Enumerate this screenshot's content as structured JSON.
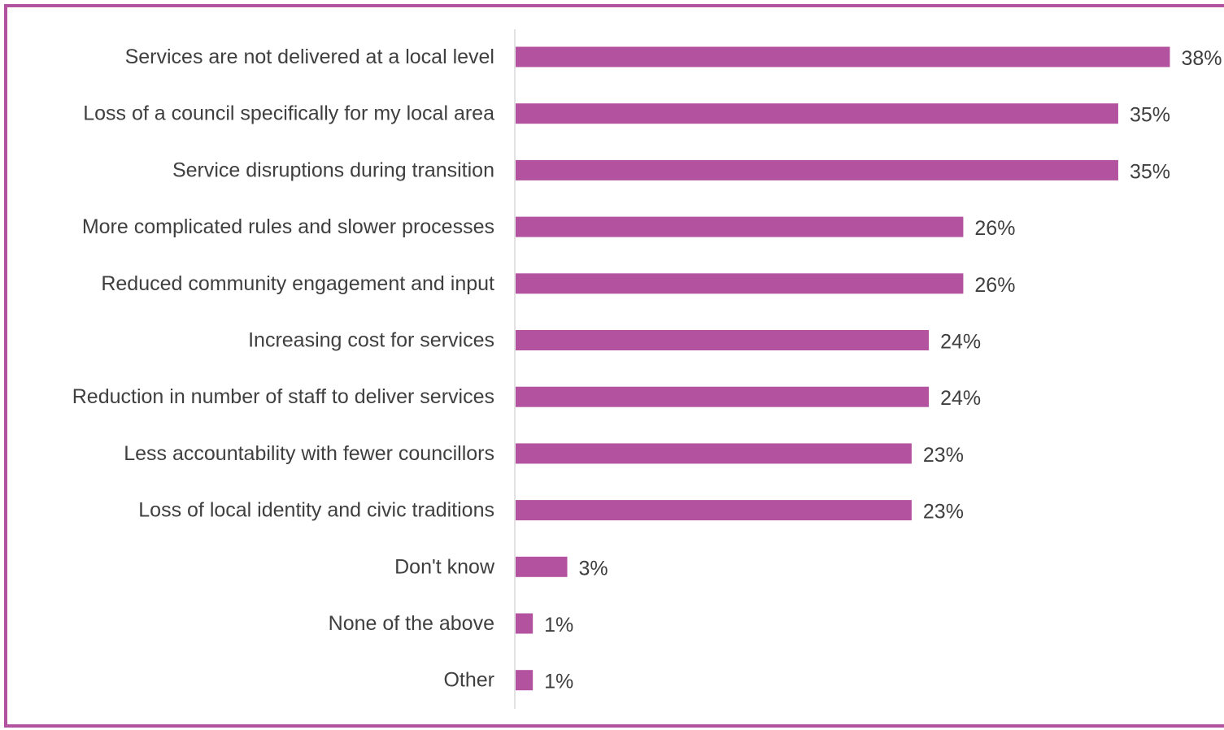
{
  "chart_data": {
    "type": "bar",
    "orientation": "horizontal",
    "categories": [
      "Services are not delivered at a local level",
      "Loss of a council specifically for my local area",
      "Service disruptions during transition",
      "More complicated rules and slower processes",
      "Reduced community engagement and input",
      "Increasing cost for services",
      "Reduction in number of staff to deliver services",
      "Less accountability with fewer councillors",
      "Loss of local identity and civic traditions",
      "Don't know",
      "None of the above",
      "Other"
    ],
    "values": [
      38,
      35,
      35,
      26,
      26,
      24,
      24,
      23,
      23,
      3,
      1,
      1
    ],
    "value_labels": [
      "38%",
      "35%",
      "35%",
      "26%",
      "26%",
      "24%",
      "24%",
      "23%",
      "23%",
      "3%",
      "1%",
      "1%"
    ],
    "title": "",
    "xlabel": "",
    "ylabel": "",
    "xlim": [
      0,
      40
    ],
    "grid": false,
    "legend": "none",
    "bar_color": "#b3539f",
    "frame_color": "#b3539f",
    "label_color": "#3f3f3f",
    "axis_color": "#d9d9d9"
  }
}
